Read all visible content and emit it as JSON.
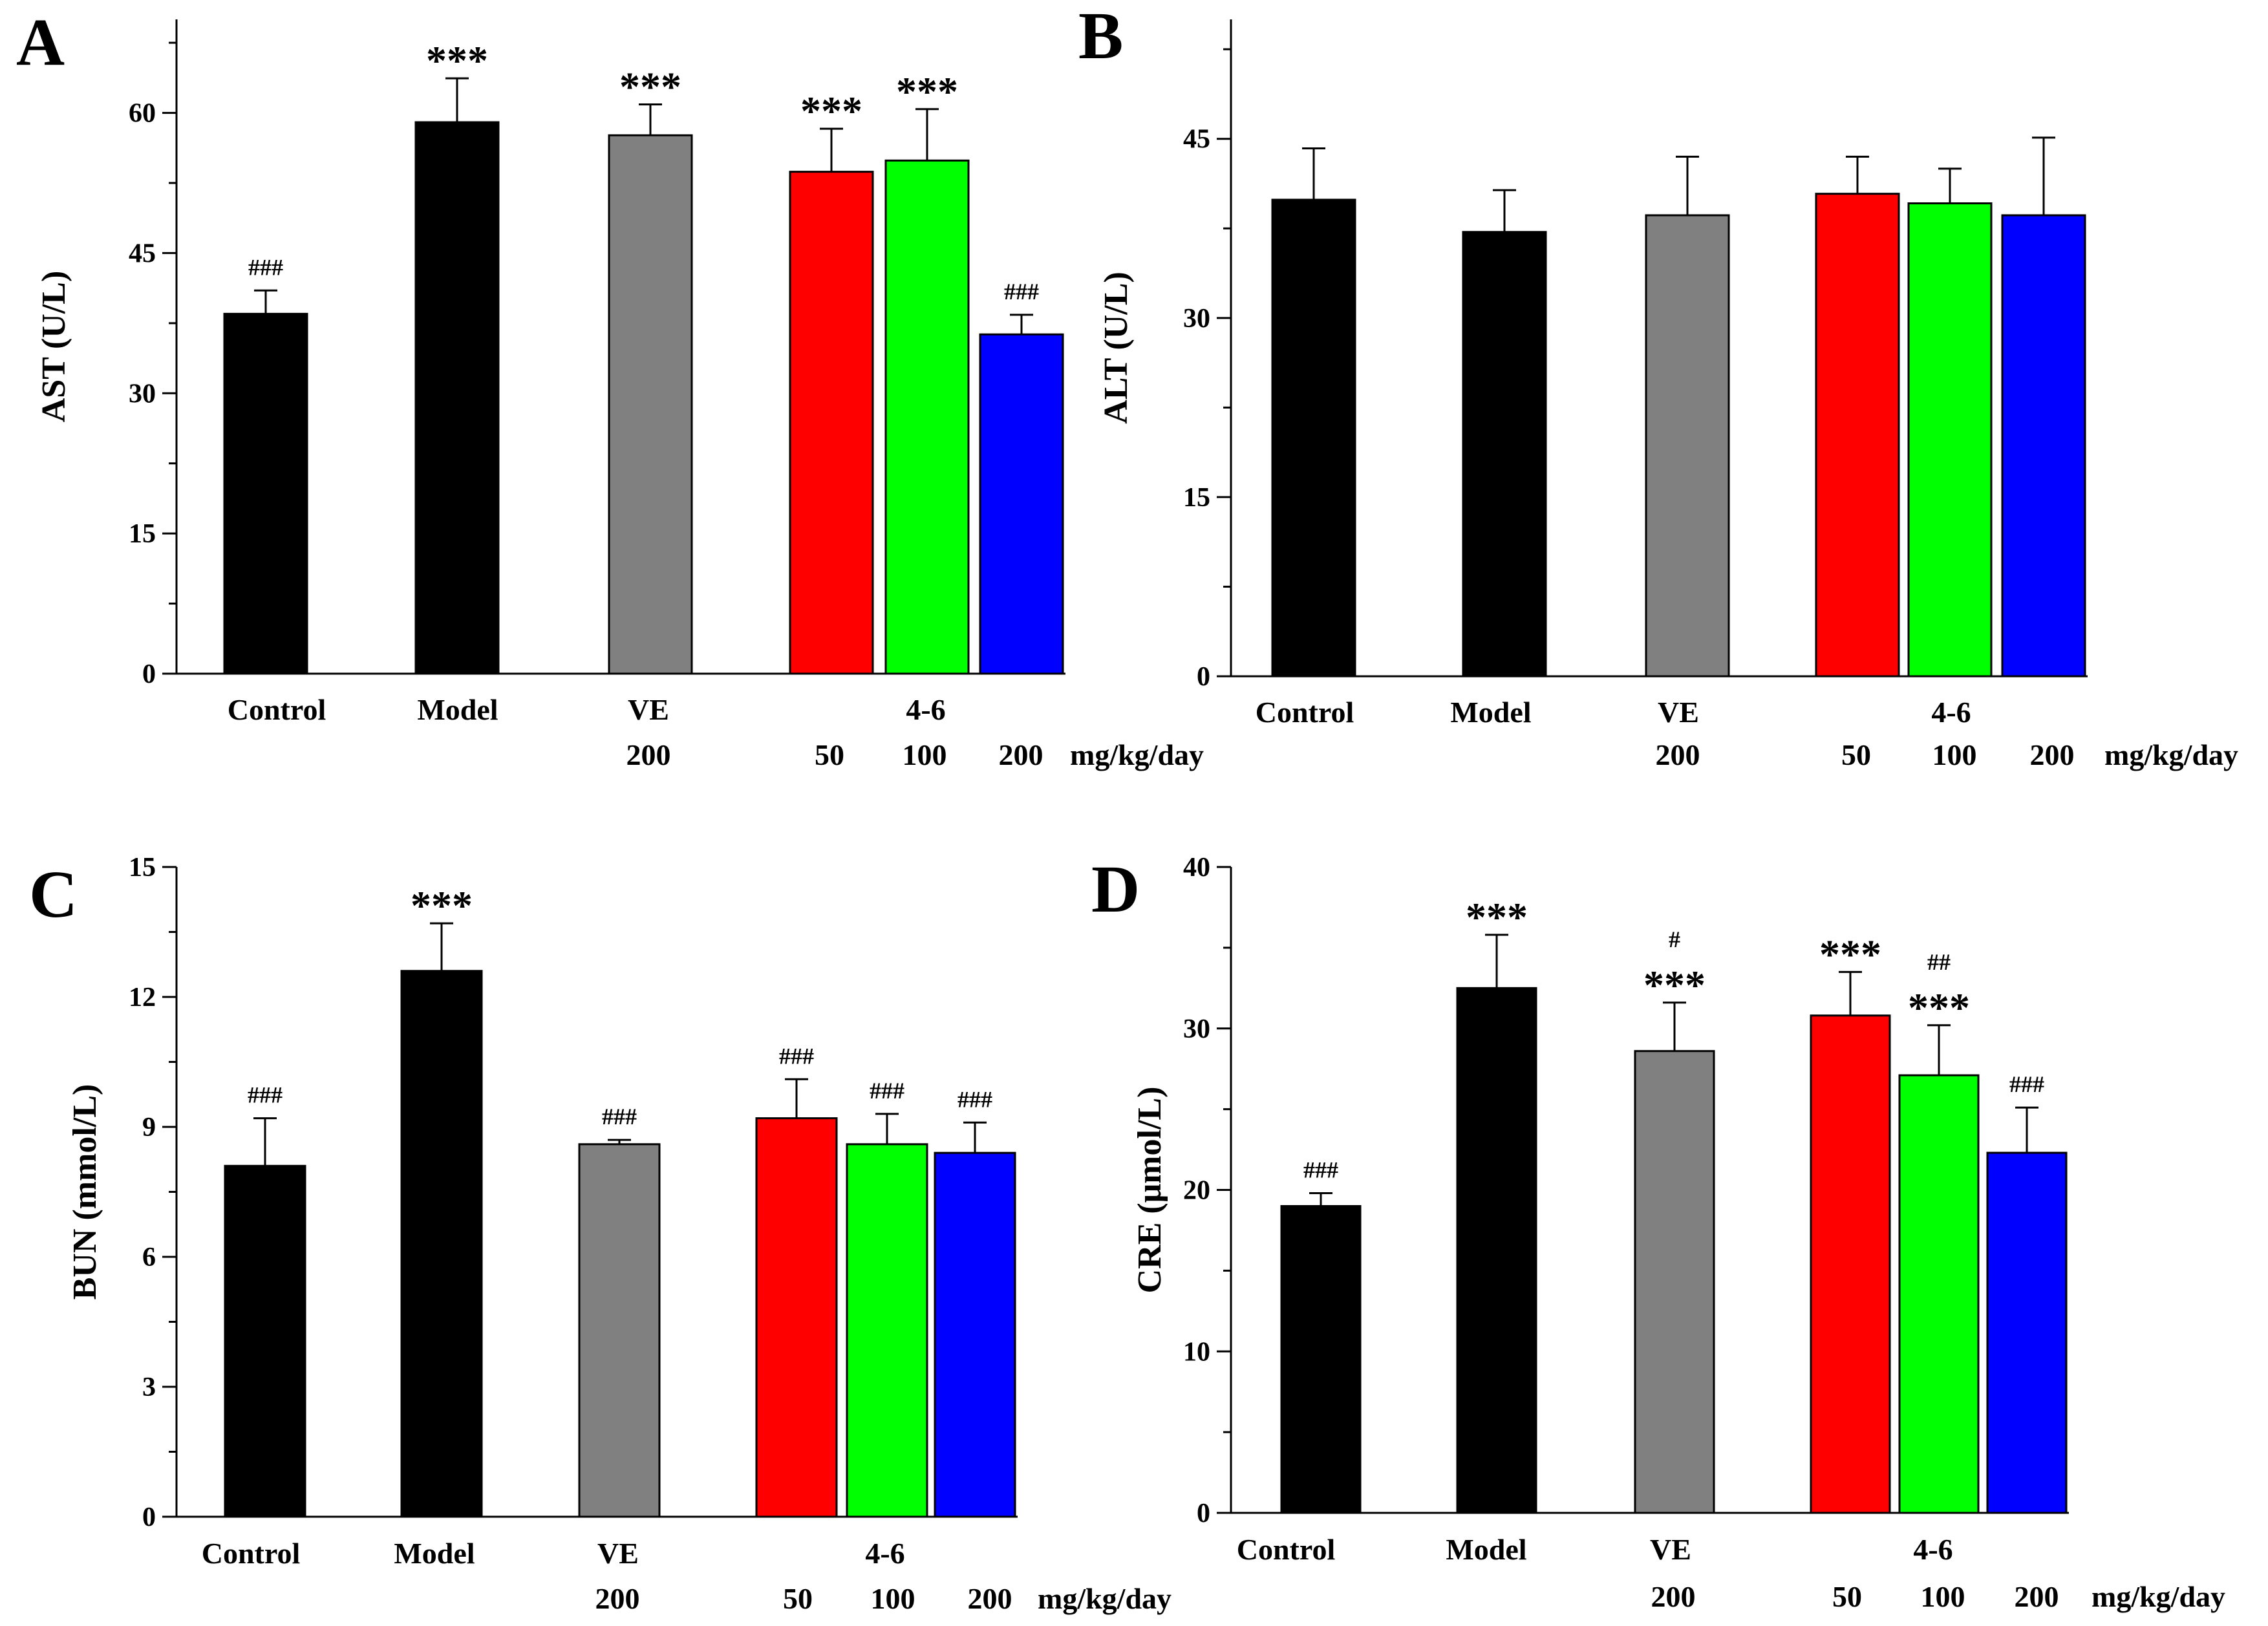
{
  "figure": {
    "colors": {
      "Control": "#000000",
      "Model": "#000000",
      "VE": "#808080",
      "4-6 50": "#ff0000",
      "4-6 100": "#00ff00",
      "4-6 200": "#0000ff"
    }
  },
  "chart_data": [
    {
      "panel": "A",
      "type": "bar",
      "ylabel": "AST (U/L)",
      "ylim": [
        0,
        70
      ],
      "yticks": [
        0,
        15,
        30,
        45,
        60
      ],
      "categories": [
        "Control",
        "Model",
        "VE",
        "4-6 50",
        "4-6 100",
        "4-6 200"
      ],
      "values": [
        38.5,
        59,
        57.6,
        53.7,
        54.9,
        36.3
      ],
      "errors": [
        2.5,
        4.7,
        3.3,
        4.6,
        5.5,
        2.1
      ],
      "annotations": [
        [
          "###"
        ],
        [
          "***"
        ],
        [
          "***"
        ],
        [
          "***"
        ],
        [
          "***"
        ],
        [
          "###"
        ]
      ],
      "group_labels": [
        "Control",
        "Model",
        "VE",
        "4-6"
      ],
      "dose_labels": [
        "200",
        "50",
        "100",
        "200",
        "mg/kg/day"
      ]
    },
    {
      "panel": "B",
      "type": "bar",
      "ylabel": "ALT (U/L)",
      "ylim": [
        0,
        55
      ],
      "yticks": [
        0,
        15,
        30,
        45
      ],
      "categories": [
        "Control",
        "Model",
        "VE",
        "4-6 50",
        "4-6 100",
        "4-6 200"
      ],
      "values": [
        39.9,
        37.2,
        38.6,
        40.4,
        39.6,
        38.6
      ],
      "errors": [
        4.3,
        3.5,
        4.9,
        3.1,
        2.9,
        6.5
      ],
      "annotations": [
        [],
        [],
        [],
        [],
        [],
        []
      ],
      "group_labels": [
        "Control",
        "Model",
        "VE",
        "4-6"
      ],
      "dose_labels": [
        "200",
        "50",
        "100",
        "200",
        "mg/kg/day"
      ]
    },
    {
      "panel": "C",
      "type": "bar",
      "ylabel": "BUN (mmol/L)",
      "ylim": [
        0,
        15
      ],
      "yticks": [
        0,
        3,
        6,
        9,
        12,
        15
      ],
      "categories": [
        "Control",
        "Model",
        "VE",
        "4-6 50",
        "4-6 100",
        "4-6 200"
      ],
      "values": [
        8.1,
        12.6,
        8.6,
        9.2,
        8.6,
        8.4
      ],
      "errors": [
        1.1,
        1.1,
        0.1,
        0.9,
        0.7,
        0.7
      ],
      "annotations": [
        [
          "###"
        ],
        [
          "***"
        ],
        [
          "###"
        ],
        [
          "###"
        ],
        [
          "###"
        ],
        [
          "###"
        ]
      ],
      "group_labels": [
        "Control",
        "Model",
        "VE",
        "4-6"
      ],
      "dose_labels": [
        "200",
        "50",
        "100",
        "200",
        "mg/kg/day"
      ]
    },
    {
      "panel": "D",
      "type": "bar",
      "ylabel": "CRE (μmol/L)",
      "ylim": [
        0,
        40
      ],
      "yticks": [
        0,
        10,
        20,
        30,
        40
      ],
      "categories": [
        "Control",
        "Model",
        "VE",
        "4-6 50",
        "4-6 100",
        "4-6 200"
      ],
      "values": [
        19,
        32.5,
        28.6,
        30.8,
        27.1,
        22.3
      ],
      "errors": [
        0.8,
        3.3,
        3.0,
        2.7,
        3.1,
        2.8
      ],
      "annotations": [
        [
          "###"
        ],
        [
          "***"
        ],
        [
          "***",
          "#"
        ],
        [
          "***"
        ],
        [
          "***",
          "##"
        ],
        [
          "###"
        ]
      ],
      "group_labels": [
        "Control",
        "Model",
        "VE",
        "4-6"
      ],
      "dose_labels": [
        "200",
        "50",
        "100",
        "200",
        "mg/kg/day"
      ]
    }
  ]
}
